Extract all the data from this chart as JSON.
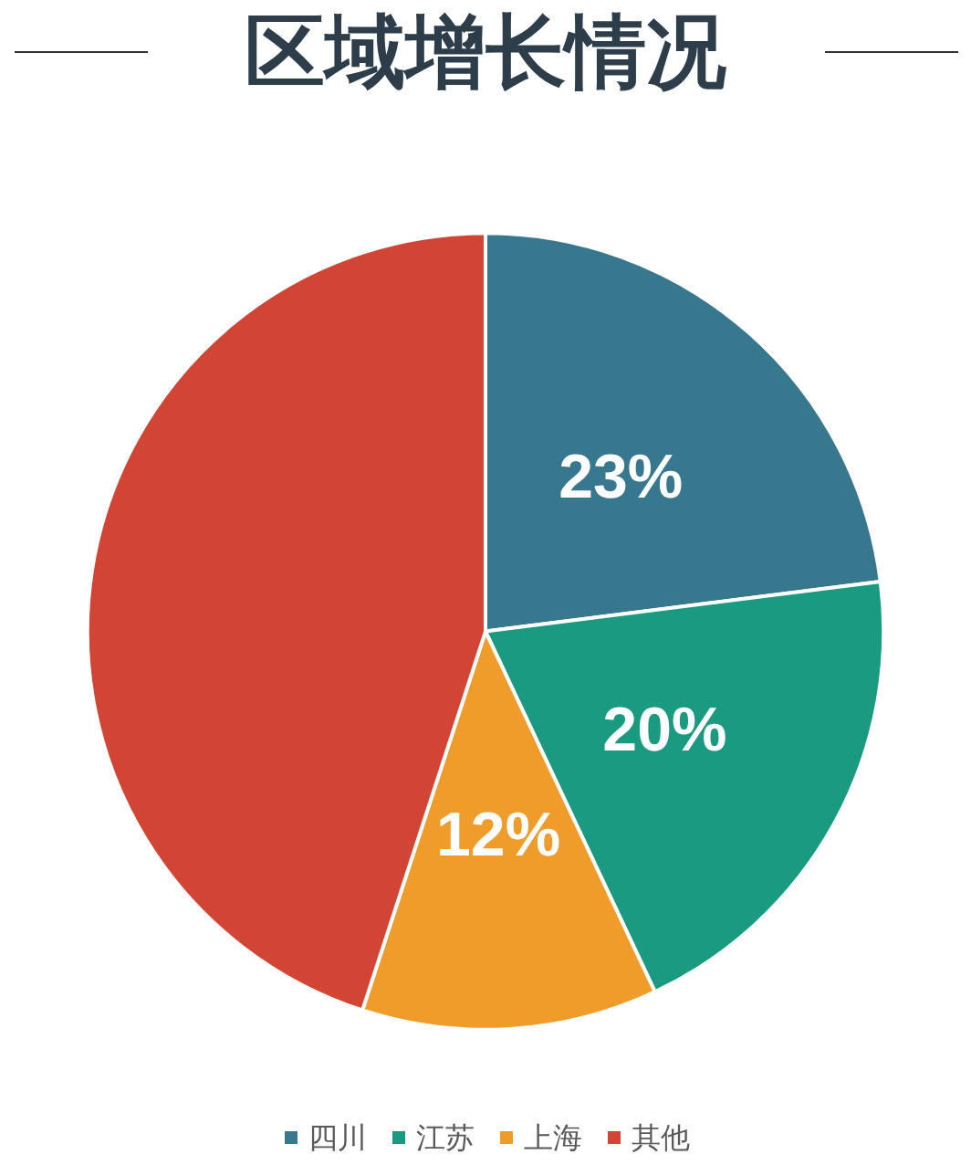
{
  "chart_data": {
    "type": "pie",
    "title": "区域增长情况",
    "categories": [
      "四川",
      "江苏",
      "上海",
      "其他"
    ],
    "values": [
      23,
      20,
      12,
      45
    ],
    "colors": [
      "#37788f",
      "#1a9a80",
      "#f09c2a",
      "#d24433"
    ],
    "value_labels": [
      "23%",
      "20%",
      "12%",
      null
    ],
    "legend": "bottom"
  }
}
